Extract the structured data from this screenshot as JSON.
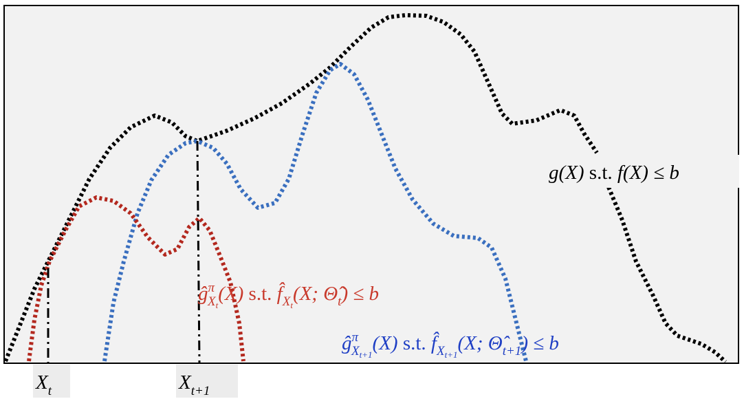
{
  "labels": {
    "objective": [
      "g(X)",
      " s.t. ",
      "f(X) ≤ b"
    ],
    "surrogate_t": [
      "ĝ",
      "π",
      "X",
      "t",
      "(X)",
      " s.t. ",
      "f̂",
      "X",
      "t",
      "(X; Θ̂",
      "t",
      ") ≤ b"
    ],
    "surrogate_t1": [
      "ĝ",
      "π",
      "X",
      "t+1",
      "(X)",
      " s.t. ",
      "f̂",
      "X",
      "t+1",
      "(X; Θ̂",
      "t+1",
      ") ≤ b"
    ],
    "x_t": [
      "X",
      "t"
    ],
    "x_t1": [
      "X",
      "t+1"
    ]
  }
}
